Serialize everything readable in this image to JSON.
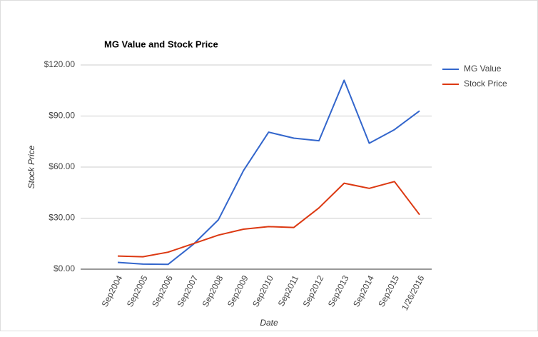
{
  "chart_data": {
    "type": "line",
    "title": "MG Value and Stock Price",
    "x_label": "Date",
    "y_label": "Stock Price",
    "categories": [
      "Sep2004",
      "Sep2005",
      "Sep2006",
      "Sep2007",
      "Sep2008",
      "Sep2009",
      "Sep2010",
      "Sep2011",
      "Sep2012",
      "Sep2013",
      "Sep2014",
      "Sep2015",
      "1/26/2016"
    ],
    "series": [
      {
        "name": "MG Value",
        "color": "#3366cc",
        "values": [
          4,
          3,
          2.8,
          14.5,
          29,
          58,
          80.5,
          77,
          75.5,
          111,
          74,
          82,
          93
        ]
      },
      {
        "name": "Stock Price",
        "color": "#dc3912",
        "values": [
          7.7,
          7.3,
          10,
          15,
          20,
          23.5,
          25,
          24.5,
          36,
          50.5,
          47.5,
          51.5,
          32
        ]
      }
    ],
    "ylim": [
      0,
      120
    ],
    "yticks": [
      {
        "value": 0,
        "label": "$0.00"
      },
      {
        "value": 30,
        "label": "$30.00"
      },
      {
        "value": 60,
        "label": "$60.00"
      },
      {
        "value": 90,
        "label": "$90.00"
      },
      {
        "value": 120,
        "label": "$120.00"
      }
    ],
    "grid": true,
    "legend": "right"
  }
}
